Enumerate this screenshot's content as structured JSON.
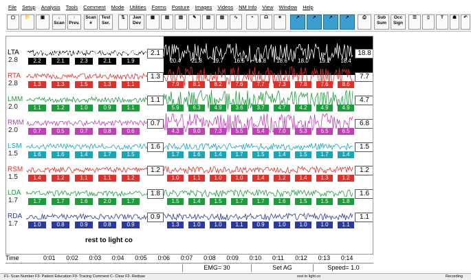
{
  "menu": [
    "File",
    "Setup",
    "Analysis",
    "Tools",
    "Comment",
    "Mode",
    "Utilities",
    "Forms",
    "Posture",
    "Images",
    "Videos",
    "NM Info",
    "View",
    "Window",
    "Help"
  ],
  "toolbar": {
    "down_label": "Scan",
    "prev_label": "Prev.",
    "scan_label": "Scan #",
    "test_label": "Test Ser.",
    "jaw_label": "Jaw Dev",
    "sub_sum": "Sub Sum",
    "occ_sign": "Occ Sign"
  },
  "channels": [
    {
      "name": "LTA",
      "color": "#000000",
      "scale": "2.8",
      "end": "2.1",
      "right": "18.8",
      "left_vals": [
        "2.2",
        "2.1",
        "2.3",
        "2.1",
        "1.9"
      ],
      "right_vals": [
        "20.4",
        "21.8",
        "19.7",
        "16.5",
        "16.8",
        "18.6",
        "18.0",
        "19.1",
        "18.4"
      ]
    },
    {
      "name": "RTA",
      "color": "#e0302a",
      "scale": "2.8",
      "end": "1.3",
      "right": "7.7",
      "left_vals": [
        "1.3",
        "1.3",
        "1.5",
        "1.3",
        "1.1"
      ],
      "right_vals": [
        "7.9",
        "8.1",
        "8.2",
        "7.6",
        "7.7",
        "7.3",
        "7.8",
        "7.6",
        "8.6"
      ]
    },
    {
      "name": "LMM",
      "color": "#1a9e3a",
      "scale": "2.0",
      "end": "1.1",
      "right": "4.7",
      "left_vals": [
        "1.1",
        "1.2",
        "1.0",
        "0.9",
        "1.1"
      ],
      "right_vals": [
        "5.9",
        "6.3",
        "4.9",
        "3.6",
        "3.7",
        "4.7",
        "4.2",
        "4.9",
        "4.9"
      ]
    },
    {
      "name": "RMM",
      "color": "#c040b8",
      "scale": "2.0",
      "end": "0.7",
      "right": "6.8",
      "left_vals": [
        "0.7",
        "0.5",
        "0.7",
        "0.8",
        "0.6"
      ],
      "right_vals": [
        "4.3",
        "9.0",
        "7.3",
        "5.5",
        "5.4",
        "7.0",
        "5.3",
        "6.5",
        "6.5"
      ]
    },
    {
      "name": "LSM",
      "color": "#18a6b8",
      "scale": "1.5",
      "end": "1.6",
      "right": "1.5",
      "left_vals": [
        "1.6",
        "1.6",
        "1.4",
        "1.7",
        "1.5"
      ],
      "right_vals": [
        "1.7",
        "1.6",
        "1.4",
        "1.7",
        "1.5",
        "1.4",
        "1.5",
        "1.7",
        "1.4"
      ]
    },
    {
      "name": "RSM",
      "color": "#e0302a",
      "scale": "1.5",
      "end": "1.2",
      "right": "1.2",
      "left_vals": [
        "1.4",
        "1.2",
        "1.1",
        "1.1",
        "1.2"
      ],
      "right_vals": [
        "1.0",
        "1.1",
        "1.0",
        "1.0",
        "1.4",
        "1.2",
        "1.4",
        "1.3",
        "1.2"
      ]
    },
    {
      "name": "LDA",
      "color": "#1a9e3a",
      "scale": "1.7",
      "end": "1.8",
      "right": "1.6",
      "left_vals": [
        "1.7",
        "1.7",
        "1.6",
        "2.0",
        "1.7"
      ],
      "right_vals": [
        "1.5",
        "1.4",
        "1.5",
        "1.7",
        "1.7",
        "1.6",
        "1.5",
        "1.5",
        "1.8"
      ]
    },
    {
      "name": "RDA",
      "color": "#2a3aa0",
      "scale": "1.7",
      "end": "0.9",
      "right": "1.1",
      "left_vals": [
        "1.0",
        "0.8",
        "0.9",
        "0.8",
        "0.9"
      ],
      "right_vals": [
        "1.3",
        "1.0",
        "1.0",
        "1.1",
        "0.9",
        "1.0",
        "1.0",
        "1.0",
        "1.1"
      ]
    }
  ],
  "note": "rest to light co",
  "time_label": "Time",
  "time_ticks": [
    "0:01",
    "0:02",
    "0:03",
    "0:04",
    "0:05",
    "0:06",
    "0:07",
    "0:08",
    "0:09",
    "0:10",
    "0:11",
    "0:12",
    "0:13",
    "0:14"
  ],
  "status": {
    "emg": "EMG= 30",
    "setag": "Set AG",
    "speed": "Speed= 1.0"
  },
  "bottom": {
    "help": "F1- Scan Number   F3- Patient Education   F9- Tracing Comment   C- Clear   F2- Redraw",
    "comment": "rest to light co",
    "recording": "Recording"
  }
}
